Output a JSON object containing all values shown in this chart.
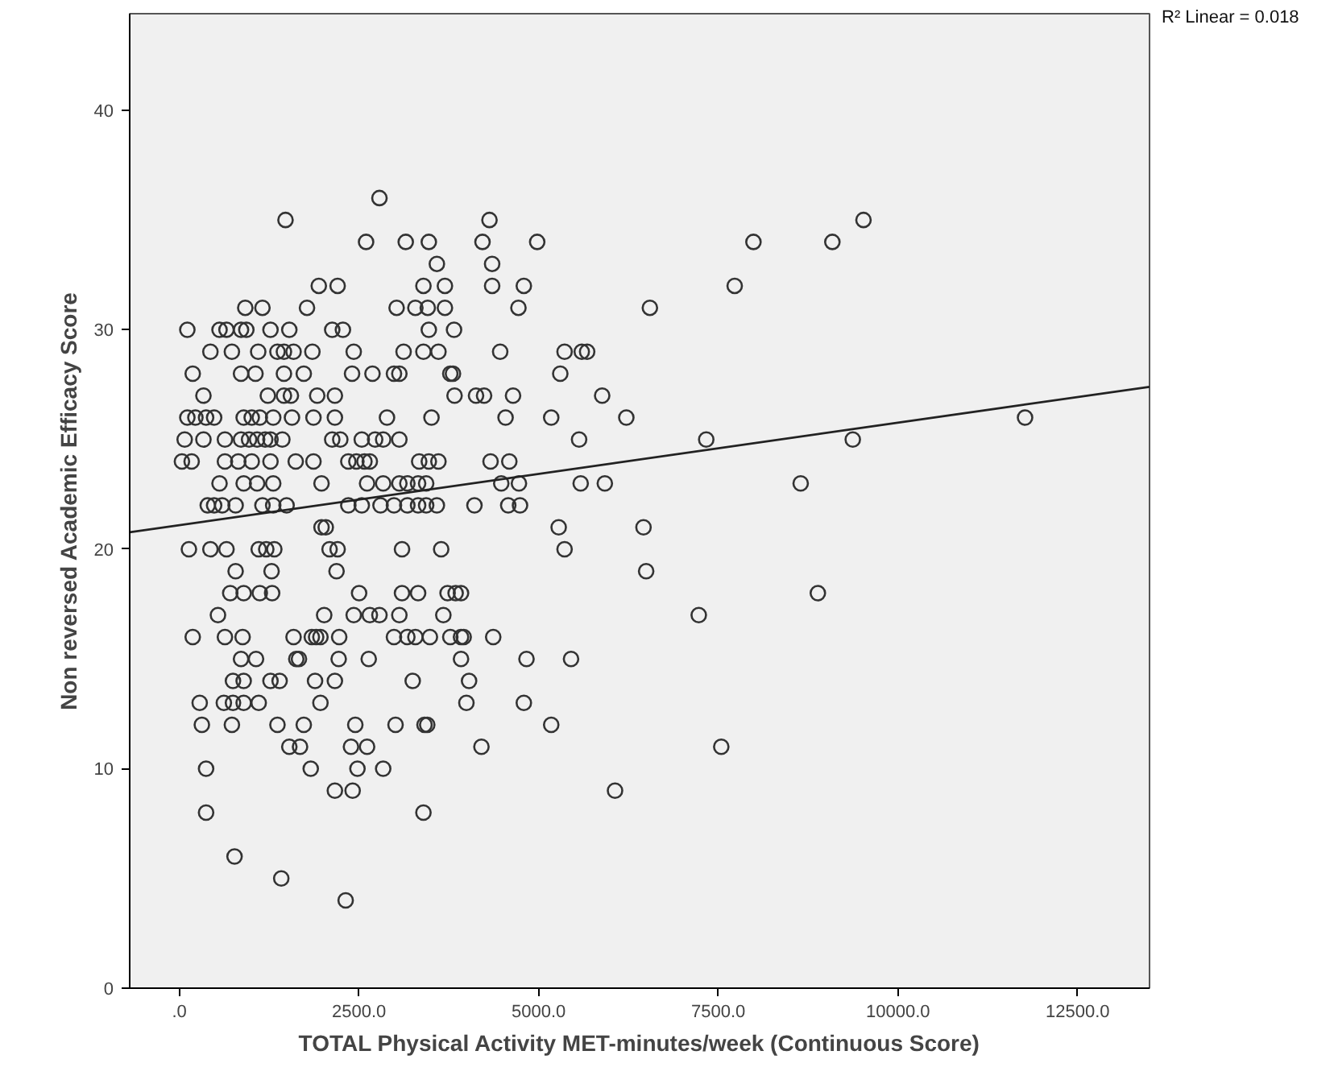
{
  "chart_data": {
    "type": "scatter",
    "xlabel": "TOTAL Physical Activity MET-minutes/week (Continuous Score)",
    "ylabel": "Non reversed Academic Efficacy Score",
    "annotations": [
      "R² Linear = 0.018"
    ],
    "xlim": [
      -690,
      13500
    ],
    "ylim": [
      0,
      44.4
    ],
    "xticks": [
      {
        "value": 0,
        "label": ".0"
      },
      {
        "value": 2500,
        "label": "2500.0"
      },
      {
        "value": 5000,
        "label": "5000.0"
      },
      {
        "value": 7500,
        "label": "7500.0"
      },
      {
        "value": 10000,
        "label": "10000.0"
      },
      {
        "value": 12500,
        "label": "12500.0"
      }
    ],
    "yticks": [
      0,
      10,
      20,
      30,
      40
    ],
    "grid": false,
    "marker": "circle",
    "series": [
      {
        "color": "#333333",
        "x": [
          2785,
          1478,
          4316,
          9520,
          2599,
          3151,
          3472,
          4219,
          4980,
          7989,
          9087,
          3584,
          4353,
          1941,
          2203,
          3397,
          3696,
          4353,
          4794,
          7728,
          918,
          1157,
          1777,
          3024,
          3285,
          3457,
          3696,
          4719,
          6548,
          112,
          560,
          657,
          859,
          933,
          1269,
          1531,
          2128,
          2277,
          3472,
          3823,
          433,
          732,
          1098,
          1366,
          1456,
          1590,
          1852,
          2427,
          3121,
          3397,
          3606,
          4465,
          5361,
          5600,
          5675,
          187,
          859,
          1060,
          1456,
          1732,
          2404,
          2688,
          2987,
          3062,
          3771,
          3808,
          5301,
          336,
          1232,
          1456,
          1553,
          1919,
          2165,
          3830,
          4129,
          4241,
          4644,
          5884,
          112,
          224,
          373,
          485,
          896,
          1008,
          1120,
          1307,
          1568,
          1867,
          2165,
          2890,
          3509,
          4540,
          5175,
          6220,
          11768,
          75,
          336,
          635,
          859,
          971,
          1083,
          1195,
          1269,
          1434,
          2128,
          2240,
          2539,
          2725,
          2837,
          3062,
          5563,
          7332,
          9371,
          37,
          172,
          635,
          821,
          1008,
          1269,
          1620,
          1867,
          2352,
          2464,
          2576,
          2651,
          3338,
          3472,
          3606,
          4331,
          4592,
          560,
          896,
          1083,
          1307,
          1979,
          2613,
          2837,
          3062,
          3173,
          3323,
          3435,
          4480,
          4726,
          5585,
          5921,
          8646,
          396,
          485,
          597,
          784,
          1157,
          1307,
          1493,
          2352,
          2539,
          2800,
          2987,
          3173,
          3323,
          3435,
          3584,
          4107,
          4577,
          4741,
          1979,
          2038,
          5279,
          6459,
          134,
          433,
          657,
          1105,
          1210,
          1322,
          2091,
          2203,
          3099,
          3644,
          5361,
          784,
          1284,
          2188,
          6496,
          709,
          896,
          1120,
          1292,
          2502,
          3099,
          3323,
          3733,
          3845,
          3920,
          8885,
          538,
          2016,
          2427,
          2651,
          2785,
          3062,
          3674,
          7228,
          187,
          635,
          881,
          1590,
          1844,
          1904,
          1964,
          2225,
          2987,
          3173,
          3285,
          3487,
          3771,
          3920,
          3957,
          4368,
          859,
          1068,
          1628,
          1665,
          2218,
          2636,
          3920,
          4831,
          5451,
          747,
          896,
          1269,
          1396,
          1889,
          2165,
          3248,
          4032,
          284,
          620,
          747,
          896,
          1105,
          1964,
          3995,
          4794,
          314,
          732,
          1366,
          1732,
          2449,
          3009,
          3412,
          3450,
          5175,
          1531,
          1680,
          2389,
          2613,
          4204,
          7541,
          373,
          1829,
          2479,
          2837,
          2165,
          2412,
          6063,
          373,
          3397,
          769,
          1419,
          2315
        ],
        "values": [
          36,
          35,
          35,
          35,
          34,
          34,
          34,
          34,
          34,
          34,
          34,
          33,
          33,
          32,
          32,
          32,
          32,
          32,
          32,
          32,
          31,
          31,
          31,
          31,
          31,
          31,
          31,
          31,
          31,
          30,
          30,
          30,
          30,
          30,
          30,
          30,
          30,
          30,
          30,
          30,
          29,
          29,
          29,
          29,
          29,
          29,
          29,
          29,
          29,
          29,
          29,
          29,
          29,
          29,
          29,
          28,
          28,
          28,
          28,
          28,
          28,
          28,
          28,
          28,
          28,
          28,
          28,
          27,
          27,
          27,
          27,
          27,
          27,
          27,
          27,
          27,
          27,
          27,
          26,
          26,
          26,
          26,
          26,
          26,
          26,
          26,
          26,
          26,
          26,
          26,
          26,
          26,
          26,
          26,
          26,
          25,
          25,
          25,
          25,
          25,
          25,
          25,
          25,
          25,
          25,
          25,
          25,
          25,
          25,
          25,
          25,
          25,
          25,
          24,
          24,
          24,
          24,
          24,
          24,
          24,
          24,
          24,
          24,
          24,
          24,
          24,
          24,
          24,
          24,
          24,
          23,
          23,
          23,
          23,
          23,
          23,
          23,
          23,
          23,
          23,
          23,
          23,
          23,
          23,
          23,
          23,
          22,
          22,
          22,
          22,
          22,
          22,
          22,
          22,
          22,
          22,
          22,
          22,
          22,
          22,
          22,
          22,
          22,
          22,
          21,
          21,
          21,
          21,
          20,
          20,
          20,
          20,
          20,
          20,
          20,
          20,
          20,
          20,
          20,
          19,
          19,
          19,
          19,
          18,
          18,
          18,
          18,
          18,
          18,
          18,
          18,
          18,
          18,
          18,
          17,
          17,
          17,
          17,
          17,
          17,
          17,
          17,
          16,
          16,
          16,
          16,
          16,
          16,
          16,
          16,
          16,
          16,
          16,
          16,
          16,
          16,
          16,
          16,
          15,
          15,
          15,
          15,
          15,
          15,
          15,
          15,
          15,
          14,
          14,
          14,
          14,
          14,
          14,
          14,
          14,
          13,
          13,
          13,
          13,
          13,
          13,
          13,
          13,
          12,
          12,
          12,
          12,
          12,
          12,
          12,
          12,
          12,
          11,
          11,
          11,
          11,
          11,
          11,
          10,
          10,
          10,
          10,
          9,
          9,
          9,
          8,
          8,
          6,
          5,
          4
        ]
      },
      {
        "type": "line",
        "marker": "none",
        "color": "#222222",
        "x": [
          -690,
          13500
        ],
        "values": [
          20.77,
          27.4
        ]
      }
    ]
  }
}
